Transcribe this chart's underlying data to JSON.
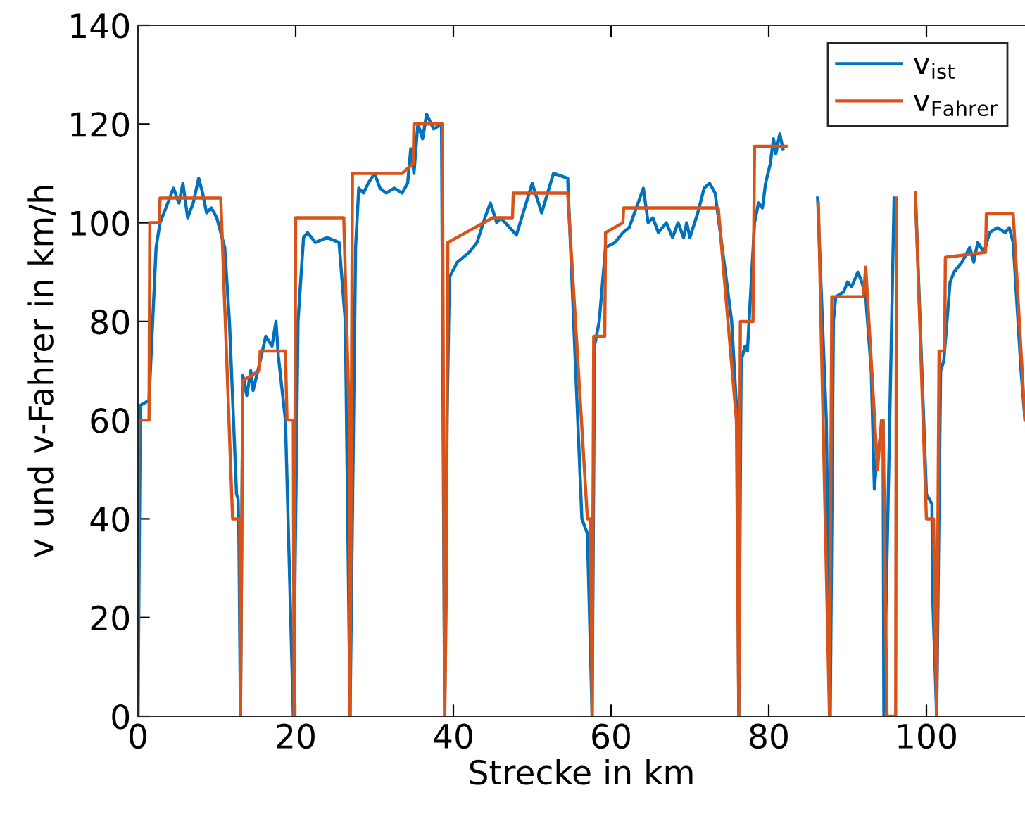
{
  "chart_data": {
    "type": "line",
    "xlabel": "Strecke in km",
    "ylabel": "v und v-Fahrer in km/h",
    "xlim": [
      0,
      112.5
    ],
    "ylim": [
      0,
      140
    ],
    "xticks": [
      0,
      20,
      40,
      60,
      80,
      100
    ],
    "yticks": [
      0,
      20,
      40,
      60,
      80,
      100,
      120,
      140
    ],
    "grid": false,
    "legend": "top right",
    "marker": "none",
    "line_style": "solid",
    "series": [
      {
        "name": "v$_{ist}$",
        "color": "#0072bd",
        "x": [
          0,
          0.3,
          1.4,
          2.3,
          2.8,
          3.3,
          4.5,
          5.2,
          5.7,
          6.3,
          7.0,
          7.7,
          8.2,
          8.7,
          9.3,
          10.0,
          11.0,
          11.6,
          12.5,
          12.7,
          12.8,
          13.0,
          13.3,
          13.8,
          14.3,
          14.6,
          15.5,
          16.2,
          17.0,
          17.5,
          17.8,
          18.7,
          19.7,
          20.3,
          21.0,
          21.5,
          22.5,
          24.0,
          25.5,
          26.3,
          26.9,
          27.6,
          28.0,
          28.6,
          29.2,
          30.0,
          30.7,
          31.5,
          32.5,
          33.5,
          34.2,
          34.6,
          35.0,
          35.5,
          36.1,
          36.6,
          37.5,
          38.5,
          38.9,
          39.2,
          39.5,
          40.5,
          42.0,
          43.0,
          44.0,
          44.7,
          45.5,
          46.0,
          48.0,
          50.0,
          51.2,
          52.7,
          54.5,
          56.3,
          57.0,
          57.6,
          57.9,
          58.5,
          59.3,
          60.5,
          61.5,
          62.3,
          64.1,
          64.7,
          65.3,
          66.0,
          67.0,
          67.8,
          68.5,
          69.2,
          69.6,
          70.0,
          71.0,
          71.8,
          72.5,
          73.2,
          74.5,
          75.3,
          76.0,
          76.2,
          76.5,
          77.0,
          77.3,
          78.2,
          78.7,
          79.2,
          79.6,
          80.2,
          80.6,
          80.9,
          81.4,
          81.8,
          82.3,
          86.2,
          87.3,
          87.8,
          88.2,
          88.5,
          89.5,
          90.0,
          90.5,
          91.3,
          91.8,
          92.3,
          93.0,
          93.4,
          93.7,
          94.5,
          94.6,
          95.9,
          96.0,
          98.6,
          100.0,
          100.7,
          100.8,
          101.3,
          101.8,
          102.2,
          103.0,
          103.5,
          104.5,
          105.5,
          106.0,
          106.5,
          107.3,
          108.0,
          109.0,
          110.0,
          110.5,
          111.0,
          112.0,
          112.5
        ],
        "values": [
          0,
          63,
          64,
          95,
          100,
          102,
          107,
          104,
          108,
          101,
          104,
          109,
          106,
          102,
          103,
          101,
          95,
          80,
          45,
          44,
          36,
          0,
          69,
          65,
          70,
          66,
          72,
          77,
          75,
          80,
          73,
          60,
          0,
          80,
          97,
          98,
          96,
          97,
          96,
          80,
          0,
          95,
          107,
          106,
          108,
          110,
          107,
          106,
          107,
          106,
          108,
          115,
          110,
          120,
          117,
          122,
          119,
          120,
          0,
          60,
          89,
          92,
          94,
          96,
          101,
          104,
          100,
          101,
          97.5,
          108,
          102,
          110,
          109,
          40,
          37,
          0,
          75,
          80,
          95,
          96,
          98,
          99,
          107,
          100,
          101,
          98,
          100,
          97,
          100,
          97,
          100,
          97,
          102,
          107,
          108,
          106,
          90,
          80,
          60,
          0,
          72,
          75,
          74,
          100,
          104,
          103,
          108,
          112,
          117,
          114,
          118,
          115,
          null,
          105,
          60,
          0,
          80,
          85,
          86,
          88,
          87,
          90,
          88,
          85,
          70,
          46,
          52,
          60,
          0,
          105,
          null,
          106,
          45,
          43,
          24,
          0,
          70,
          72,
          88,
          90,
          92,
          95,
          92,
          96,
          94,
          98,
          99,
          98,
          99,
          96,
          70,
          60
        ]
      },
      {
        "name": "v$_{Fahrer}$",
        "color": "#d95319",
        "x": [
          0,
          0.1,
          1.4,
          1.5,
          2.7,
          2.8,
          10.5,
          12.0,
          12.9,
          13.0,
          13.3,
          15.4,
          15.5,
          18.7,
          18.9,
          19.7,
          19.8,
          20.0,
          26.1,
          26.8,
          26.9,
          27.2,
          33.5,
          34.9,
          35.0,
          38.6,
          38.9,
          39.1,
          39.2,
          39.3,
          45.0,
          47.5,
          47.6,
          54.5,
          57.0,
          57.4,
          57.6,
          57.8,
          59.2,
          59.3,
          61.5,
          61.6,
          73.6,
          75.9,
          76.2,
          76.4,
          78.0,
          78.2,
          82.2,
          82.3,
          86.3,
          87.7,
          88.0,
          92.0,
          92.3,
          93.8,
          94.3,
          94.5,
          95.0,
          96.1,
          96.2,
          96.3,
          98.6,
          100.0,
          100.9,
          101.3,
          101.6,
          102.3,
          102.4,
          107.5,
          107.6,
          111.0,
          112.5
        ],
        "values": [
          0,
          60,
          60,
          100,
          100,
          105,
          105,
          40,
          40,
          0,
          68,
          70,
          74,
          74,
          60,
          60,
          0,
          101,
          101,
          60,
          0,
          110,
          110,
          112,
          120,
          120,
          0,
          24,
          60,
          96,
          101,
          101,
          106,
          106,
          40,
          40,
          0,
          77,
          77,
          98,
          100,
          103,
          103,
          60,
          0,
          80,
          80,
          115.5,
          115.5,
          null,
          104,
          0,
          85,
          85,
          91,
          50,
          60,
          60,
          0,
          0,
          105,
          null,
          106,
          40,
          40,
          0,
          74,
          74,
          93,
          94,
          101.8,
          101.8,
          60
        ]
      }
    ]
  }
}
